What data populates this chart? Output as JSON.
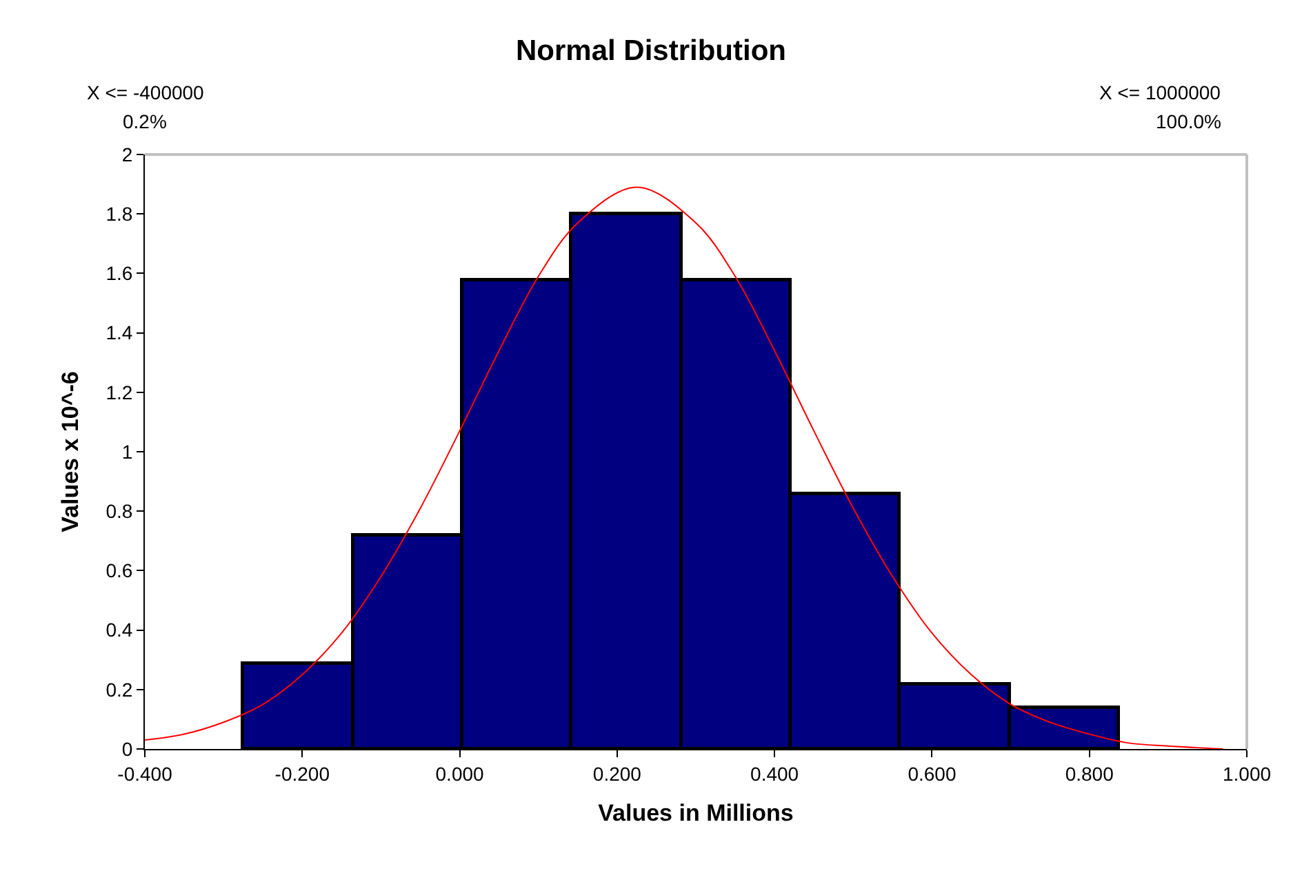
{
  "chart_data": {
    "type": "histogram",
    "title": "Normal Distribution",
    "xlabel": "Values in Millions",
    "ylabel": "Values x 10^-6",
    "annotations": [
      "X <= -400000",
      "0.2%",
      "X <= 1000000",
      "100.0%"
    ],
    "series": [
      {
        "bins": [
          -0.275,
          -0.136,
          0.003,
          0.142,
          0.281,
          0.42,
          0.559,
          0.698,
          0.837
        ],
        "values": [
          0.29,
          0.72,
          1.58,
          1.8,
          1.58,
          0.86,
          0.22,
          0.14
        ],
        "color": "#000080"
      },
      {
        "type": "line",
        "color": "#ff0000",
        "x": [
          -0.4,
          -0.35,
          -0.3,
          -0.25,
          -0.2,
          -0.15,
          -0.1,
          -0.05,
          0.0,
          0.05,
          0.1,
          0.15,
          0.225,
          0.3,
          0.35,
          0.4,
          0.45,
          0.5,
          0.55,
          0.6,
          0.65,
          0.7,
          0.75,
          0.8,
          0.85,
          0.9,
          0.97
        ],
        "values": [
          0.03,
          0.05,
          0.09,
          0.15,
          0.25,
          0.39,
          0.58,
          0.81,
          1.07,
          1.34,
          1.59,
          1.77,
          1.89,
          1.77,
          1.59,
          1.34,
          1.07,
          0.81,
          0.58,
          0.39,
          0.25,
          0.15,
          0.09,
          0.05,
          0.02,
          0.01,
          0.0
        ]
      }
    ],
    "xlim": [
      -0.4,
      1.0
    ],
    "ylim": [
      0,
      2
    ],
    "xticks": [
      {
        "value": -0.4,
        "label": "-0.400"
      },
      {
        "value": -0.2,
        "label": "-0.200"
      },
      {
        "value": 0,
        "label": "0.000"
      },
      {
        "value": 0.2,
        "label": "0.200"
      },
      {
        "value": 0.4,
        "label": "0.400"
      },
      {
        "value": 0.6,
        "label": "0.600"
      },
      {
        "value": 0.8,
        "label": "0.800"
      },
      {
        "value": 1.0,
        "label": "1.000"
      }
    ],
    "yticks": [
      0,
      0.2,
      0.4,
      0.6,
      0.8,
      1,
      1.2,
      1.4,
      1.6,
      1.8,
      2
    ]
  }
}
